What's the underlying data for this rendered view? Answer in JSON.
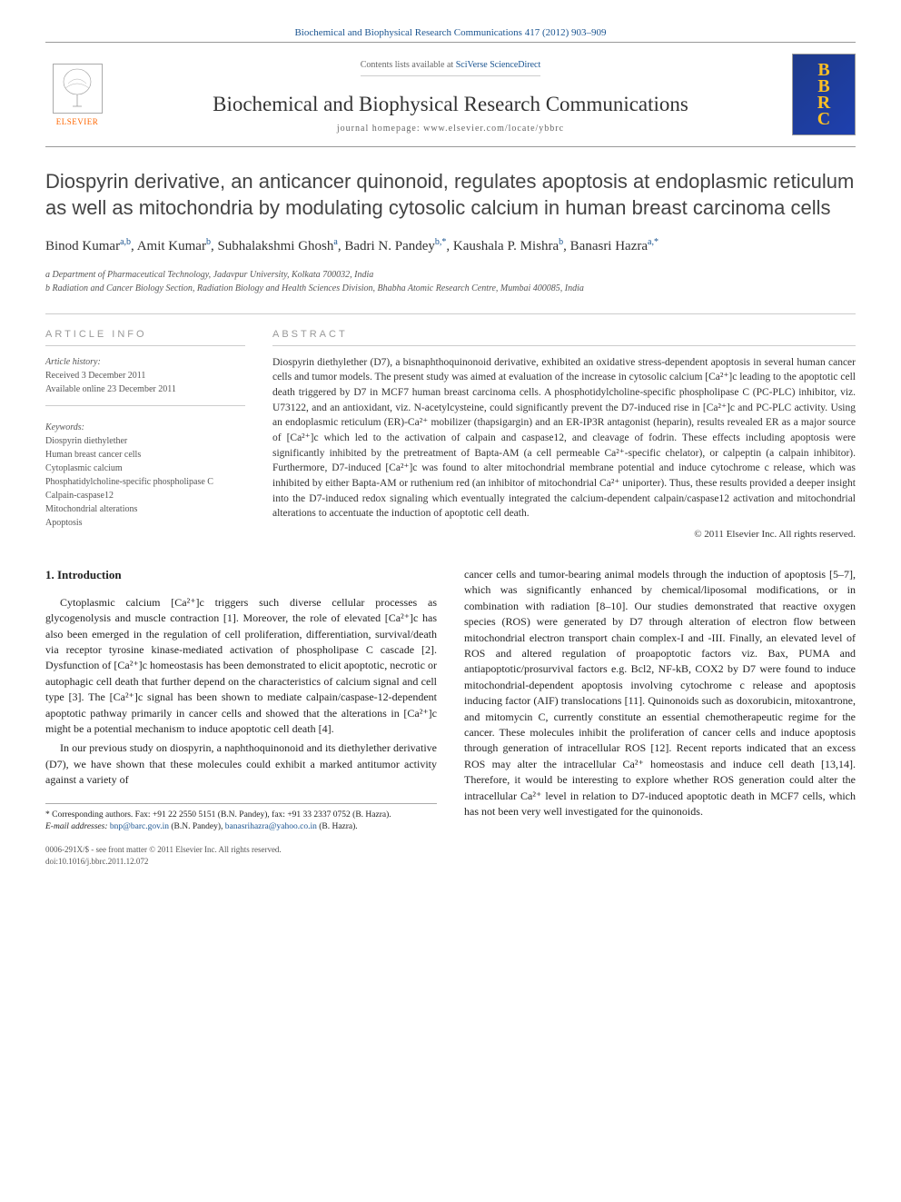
{
  "journal_ref": "Biochemical and Biophysical Research Communications 417 (2012) 903–909",
  "header": {
    "elsevier": "ELSEVIER",
    "contents_prefix": "Contents lists available at ",
    "contents_link": "SciVerse ScienceDirect",
    "journal_name": "Biochemical and Biophysical Research Communications",
    "homepage": "journal homepage: www.elsevier.com/locate/ybbrc",
    "bbrc_letters": [
      "B",
      "B",
      "R",
      "C"
    ]
  },
  "title": "Diospyrin derivative, an anticancer quinonoid, regulates apoptosis at endoplasmic reticulum as well as mitochondria by modulating cytosolic calcium in human breast carcinoma cells",
  "authors_html": "Binod Kumar<sup>a,b</sup>, Amit Kumar<sup>b</sup>, Subhalakshmi Ghosh<sup>a</sup>, Badri N. Pandey<sup>b,*</sup>, Kaushala P. Mishra<sup>b</sup>, Banasri Hazra<sup>a,*</sup>",
  "affiliations": [
    "a Department of Pharmaceutical Technology, Jadavpur University, Kolkata 700032, India",
    "b Radiation and Cancer Biology Section, Radiation Biology and Health Sciences Division, Bhabha Atomic Research Centre, Mumbai 400085, India"
  ],
  "info": {
    "heading": "ARTICLE INFO",
    "history_label": "Article history:",
    "received": "Received 3 December 2011",
    "available": "Available online 23 December 2011",
    "keywords_label": "Keywords:",
    "keywords": [
      "Diospyrin diethylether",
      "Human breast cancer cells",
      "Cytoplasmic calcium",
      "Phosphatidylcholine-specific phospholipase C",
      "Calpain-caspase12",
      "Mitochondrial alterations",
      "Apoptosis"
    ]
  },
  "abstract": {
    "heading": "ABSTRACT",
    "text": "Diospyrin diethylether (D7), a bisnaphthoquinonoid derivative, exhibited an oxidative stress-dependent apoptosis in several human cancer cells and tumor models. The present study was aimed at evaluation of the increase in cytosolic calcium [Ca²⁺]c leading to the apoptotic cell death triggered by D7 in MCF7 human breast carcinoma cells. A phosphotidylcholine-specific phospholipase C (PC-PLC) inhibitor, viz. U73122, and an antioxidant, viz. N-acetylcysteine, could significantly prevent the D7-induced rise in [Ca²⁺]c and PC-PLC activity. Using an endoplasmic reticulum (ER)-Ca²⁺ mobilizer (thapsigargin) and an ER-IP3R antagonist (heparin), results revealed ER as a major source of [Ca²⁺]c which led to the activation of calpain and caspase12, and cleavage of fodrin. These effects including apoptosis were significantly inhibited by the pretreatment of Bapta-AM (a cell permeable Ca²⁺-specific chelator), or calpeptin (a calpain inhibitor). Furthermore, D7-induced [Ca²⁺]c was found to alter mitochondrial membrane potential and induce cytochrome c release, which was inhibited by either Bapta-AM or ruthenium red (an inhibitor of mitochondrial Ca²⁺ uniporter). Thus, these results provided a deeper insight into the D7-induced redox signaling which eventually integrated the calcium-dependent calpain/caspase12 activation and mitochondrial alterations to accentuate the induction of apoptotic cell death.",
    "copyright": "© 2011 Elsevier Inc. All rights reserved."
  },
  "body": {
    "section_heading": "1. Introduction",
    "col1_p1": "Cytoplasmic calcium [Ca²⁺]c triggers such diverse cellular processes as glycogenolysis and muscle contraction [1]. Moreover, the role of elevated [Ca²⁺]c has also been emerged in the regulation of cell proliferation, differentiation, survival/death via receptor tyrosine kinase-mediated activation of phospholipase C cascade [2]. Dysfunction of [Ca²⁺]c homeostasis has been demonstrated to elicit apoptotic, necrotic or autophagic cell death that further depend on the characteristics of calcium signal and cell type [3]. The [Ca²⁺]c signal has been shown to mediate calpain/caspase-12-dependent apoptotic pathway primarily in cancer cells and showed that the alterations in [Ca²⁺]c might be a potential mechanism to induce apoptotic cell death [4].",
    "col1_p2": "In our previous study on diospyrin, a naphthoquinonoid and its diethylether derivative (D7), we have shown that these molecules could exhibit a marked antitumor activity against a variety of",
    "col2_p1": "cancer cells and tumor-bearing animal models through the induction of apoptosis [5–7], which was significantly enhanced by chemical/liposomal modifications, or in combination with radiation [8–10]. Our studies demonstrated that reactive oxygen species (ROS) were generated by D7 through alteration of electron flow between mitochondrial electron transport chain complex-I and -III. Finally, an elevated level of ROS and altered regulation of proapoptotic factors viz. Bax, PUMA and antiapoptotic/prosurvival factors e.g. Bcl2, NF-kB, COX2 by D7 were found to induce mitochondrial-dependent apoptosis involving cytochrome c release and apoptosis inducing factor (AIF) translocations [11]. Quinonoids such as doxorubicin, mitoxantrone, and mitomycin C, currently constitute an essential chemotherapeutic regime for the cancer. These molecules inhibit the proliferation of cancer cells and induce apoptosis through generation of intracellular ROS [12]. Recent reports indicated that an excess ROS may alter the intracellular Ca²⁺ homeostasis and induce cell death [13,14]. Therefore, it would be interesting to explore whether ROS generation could alter the intracellular Ca²⁺ level in relation to D7-induced apoptotic death in MCF7 cells, which has not been very well investigated for the quinonoids."
  },
  "footnotes": {
    "corresponding": "* Corresponding authors. Fax: +91 22 2550 5151 (B.N. Pandey), fax: +91 33 2337 0752 (B. Hazra).",
    "emails_label": "E-mail addresses: ",
    "email1": "bnp@barc.gov.in",
    "email1_name": " (B.N. Pandey), ",
    "email2": "banasrihazra@yahoo.co.in",
    "email2_name": " (B. Hazra)."
  },
  "footer": {
    "line1": "0006-291X/$ - see front matter © 2011 Elsevier Inc. All rights reserved.",
    "line2": "doi:10.1016/j.bbrc.2011.12.072"
  },
  "colors": {
    "link": "#1a5490",
    "elsevier_orange": "#ff6600",
    "bbrc_bg": "#1e3a8a",
    "bbrc_text": "#fbbf24",
    "text": "#333333",
    "muted": "#999999",
    "border": "#cccccc"
  }
}
